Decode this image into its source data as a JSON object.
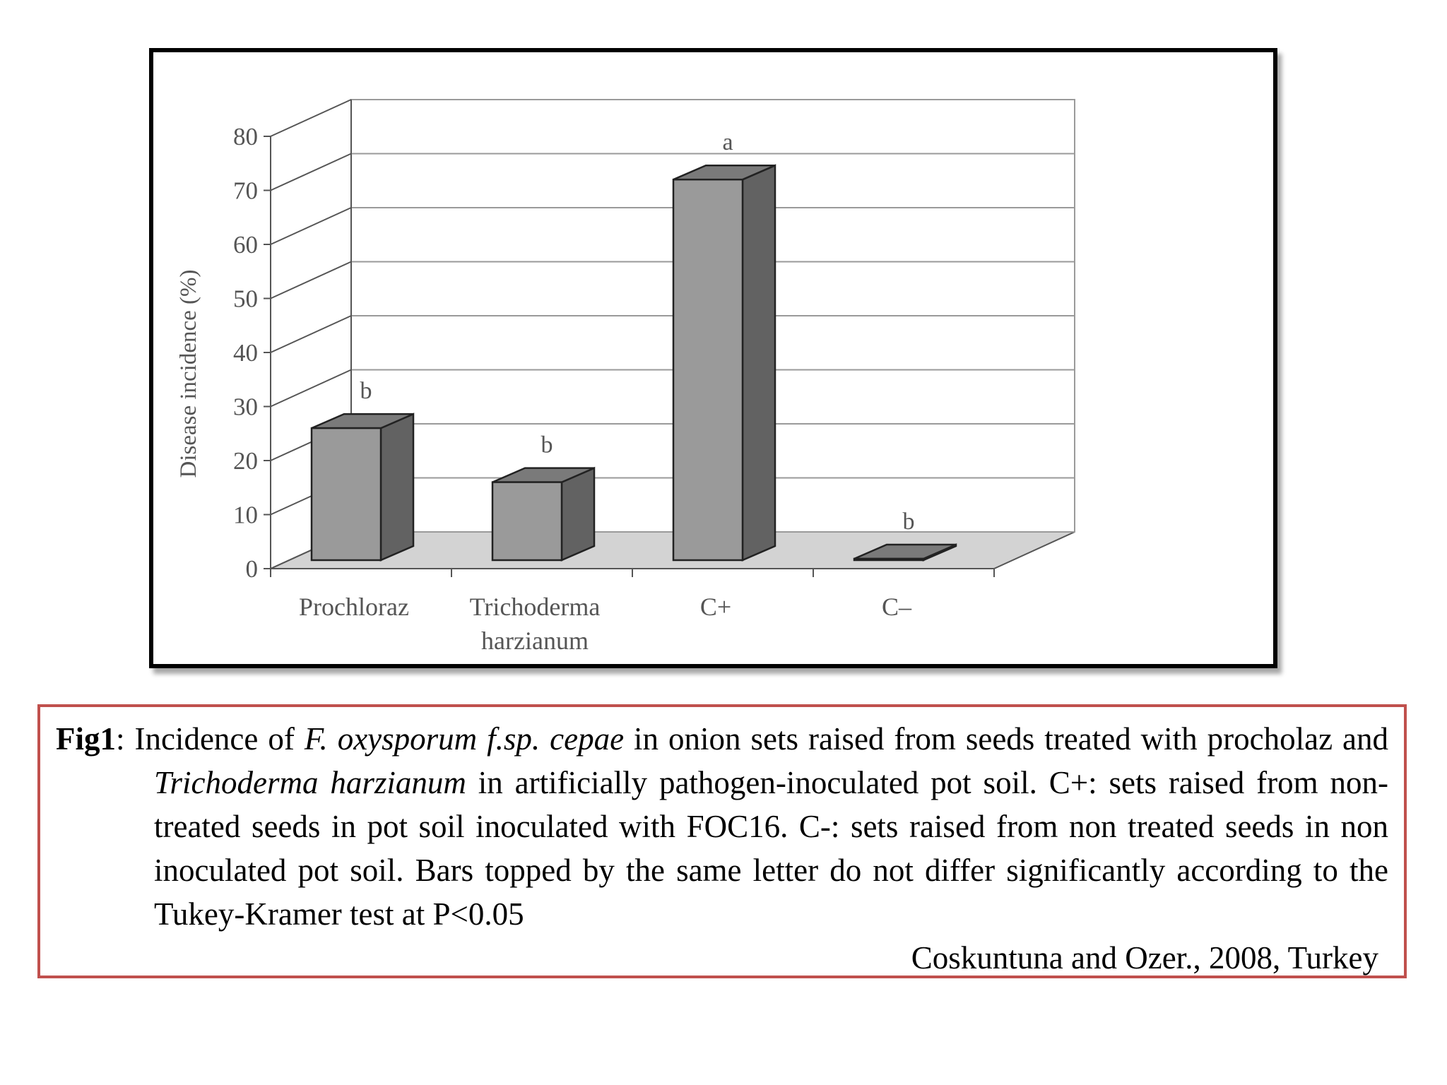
{
  "chart_data": {
    "type": "bar",
    "style": "3d",
    "categories": [
      "Prochloraz",
      "Trichoderma harzianum",
      "C+",
      "C–"
    ],
    "category_lines": [
      [
        "Prochloraz"
      ],
      [
        "Trichoderma",
        "harzianum"
      ],
      [
        "C+"
      ],
      [
        "C–"
      ]
    ],
    "values": [
      26,
      16,
      72,
      0
    ],
    "significance_letters": [
      "b",
      "b",
      "a",
      "b"
    ],
    "ylabel": "Disease incidence (%)",
    "xlabel": "",
    "ylim": [
      0,
      80
    ],
    "yticks": [
      0,
      10,
      20,
      30,
      40,
      50,
      60,
      70,
      80
    ],
    "grid": true,
    "colors": {
      "bar_front": "#9a9a9a",
      "bar_side": "#626262",
      "bar_top": "#7a7a7a",
      "floor": "#d3d3d3",
      "grid": "#9a9a9a",
      "axis_text": "#555555"
    }
  },
  "caption": {
    "label": "Fig1",
    "text_1": ": Incidence of ",
    "species": "F. oxysporum f.sp. cepae",
    "text_2": " in onion sets raised from seeds treated with procholaz and ",
    "agent": "Trichoderma harzianum",
    "text_3": " in artificially pathogen-inoculated pot soil. C+: sets raised from non-treated seeds in pot soil inoculated with FOC16. C-: sets raised from non treated seeds in non inoculated pot soil. Bars topped by the same letter do not differ significantly according to the Tukey-Kramer test at P<0.05",
    "source": "Coskuntuna  and Ozer., 2008, Turkey"
  }
}
